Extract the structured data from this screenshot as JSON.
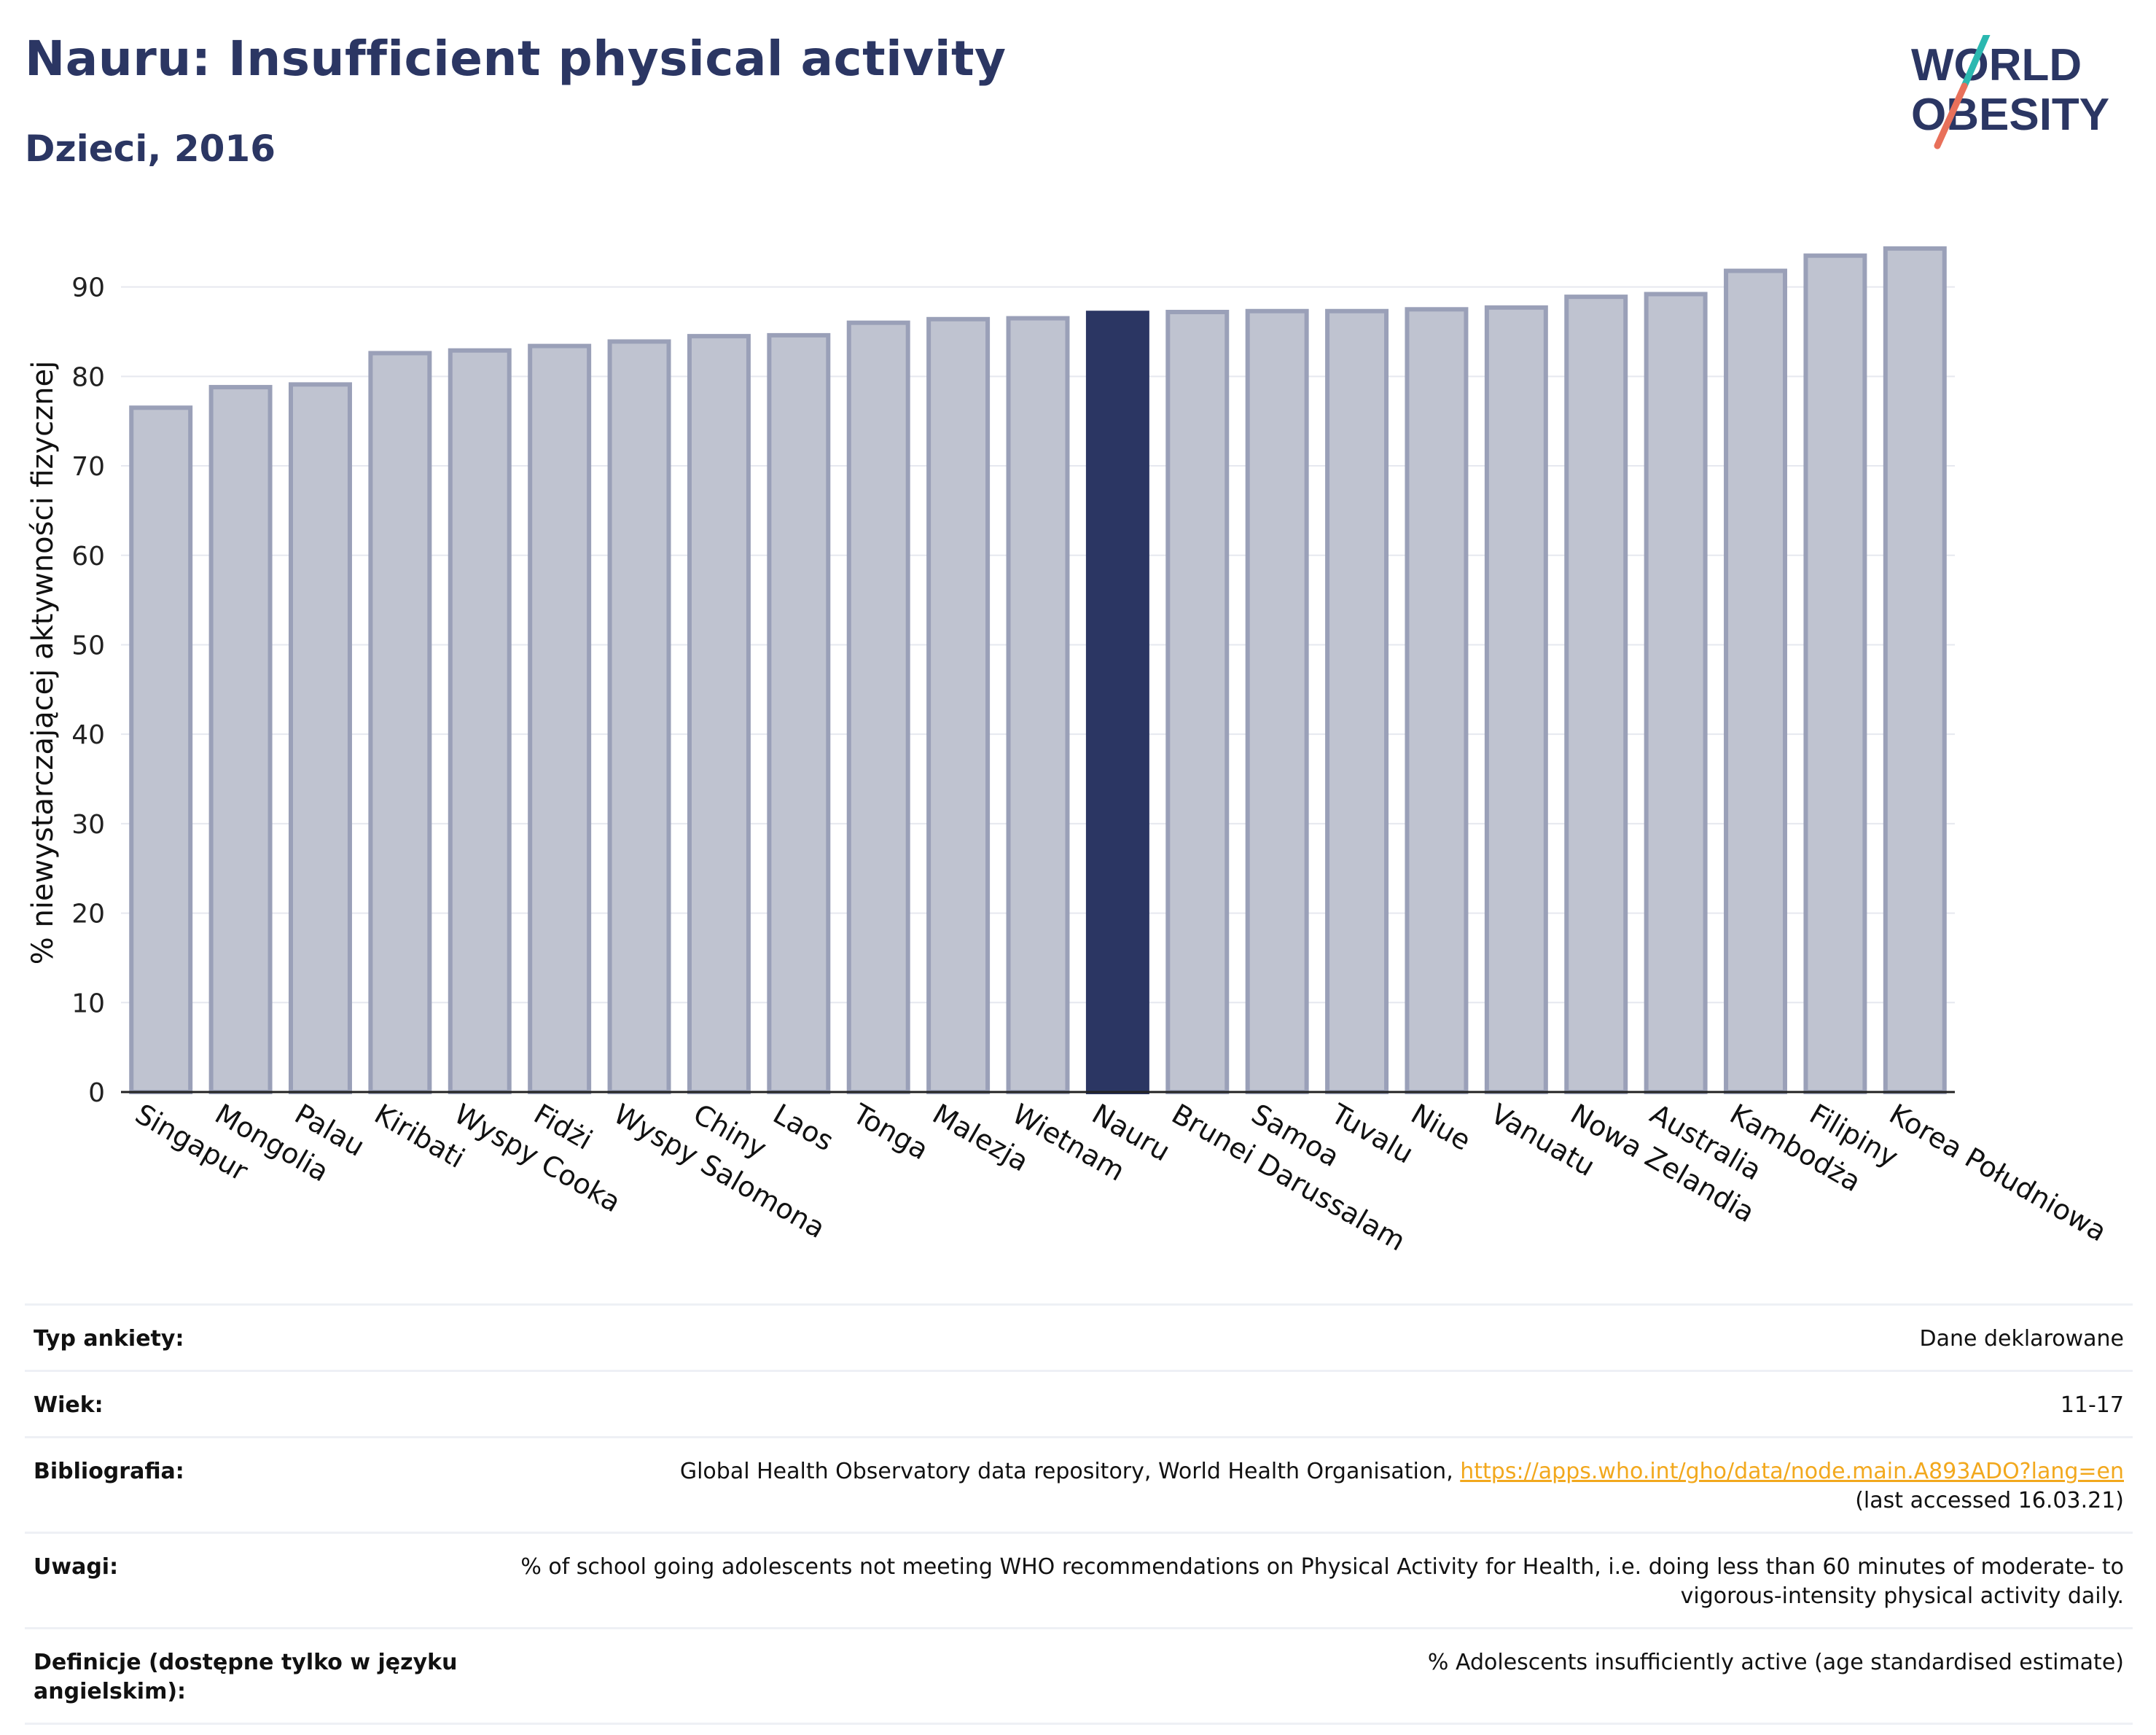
{
  "header": {
    "title": "Nauru: Insufficient physical activity",
    "subtitle": "Dzieci, 2016",
    "logo_top": "WORLD",
    "logo_bottom": "OBESITY"
  },
  "colors": {
    "title": "#2b3663",
    "bar": "#bfc3d0",
    "bar_border": "#9aa0b8",
    "highlight": "#2b3663",
    "link": "#f2a81d",
    "logo_slash_top": "#2bb8b0",
    "logo_slash_bottom": "#e8705a"
  },
  "chart_data": {
    "type": "bar",
    "categories": [
      "Singapur",
      "Mongolia",
      "Palau",
      "Kiribati",
      "Wyspy Cooka",
      "Fidżi",
      "Wyspy Salomona",
      "Chiny",
      "Laos",
      "Tonga",
      "Malezja",
      "Wietnam",
      "Nauru",
      "Brunei Darussalam",
      "Samoa",
      "Tuvalu",
      "Niue",
      "Vanuatu",
      "Nowa Zelandia",
      "Australia",
      "Kambodża",
      "Filipiny",
      "Korea Południowa"
    ],
    "values": [
      76.5,
      78.8,
      79.1,
      82.6,
      82.9,
      83.4,
      83.9,
      84.5,
      84.6,
      86.0,
      86.4,
      86.5,
      87.1,
      87.2,
      87.3,
      87.3,
      87.5,
      87.7,
      88.9,
      89.2,
      91.8,
      93.5,
      94.3
    ],
    "highlight": "Nauru",
    "ylabel": "% niewystarczającej aktywności fizycznej",
    "xlabel": "",
    "yticks": [
      0,
      10,
      20,
      30,
      40,
      50,
      60,
      70,
      80,
      90
    ],
    "ylim": [
      0,
      96
    ],
    "grid": true
  },
  "info": [
    {
      "label": "Typ ankiety:",
      "value": "Dane deklarowane"
    },
    {
      "label": "Wiek:",
      "value": "11-17"
    },
    {
      "label": "Bibliografia:",
      "value": "Global Health Observatory data repository, World Health Organisation, ",
      "link": "https://apps.who.int/gho/data/node.main.A893ADO?lang=en",
      "value_after": "(last accessed 16.03.21)"
    },
    {
      "label": "Uwagi:",
      "value": "% of school going adolescents not meeting WHO recommendations on Physical Activity for Health, i.e. doing less than 60 minutes of moderate- to vigorous-intensity physical activity daily."
    },
    {
      "label": "Definicje (dostępne tylko w języku angielskim):",
      "value": "% Adolescents insufficiently active (age standardised estimate)"
    }
  ]
}
